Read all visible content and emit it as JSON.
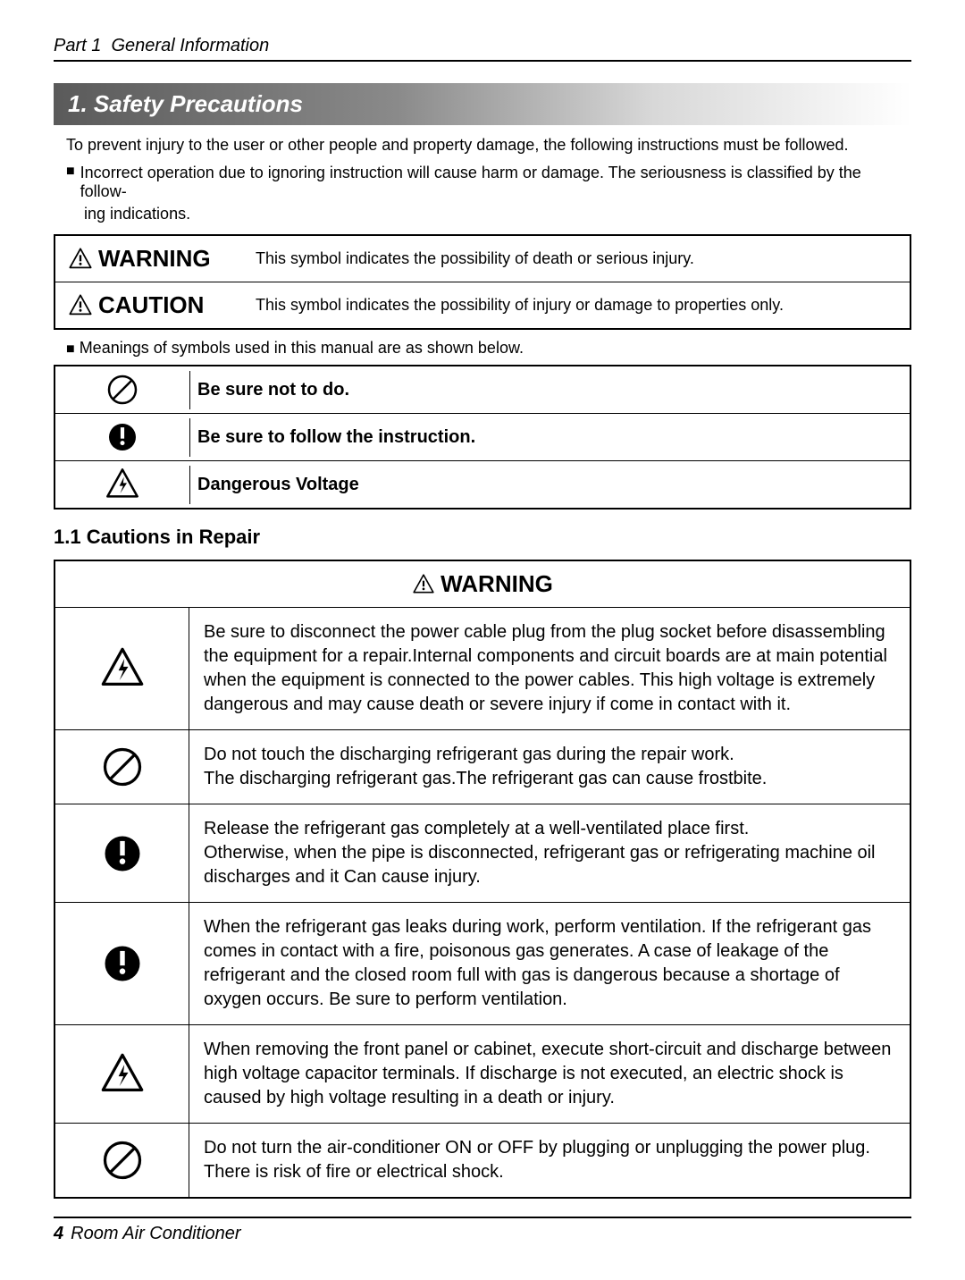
{
  "header": {
    "part": "Part 1",
    "title": "General Information"
  },
  "section": {
    "number": "1.",
    "title": "Safety Precautions"
  },
  "intro": "To prevent injury to the user or other people and property damage, the following instructions must be followed.",
  "bullet1_line1": "Incorrect operation due to ignoring instruction will cause harm or damage. The seriousness is classified by the follow-",
  "bullet1_line2": "ing indications.",
  "labels": {
    "warning": "WARNING",
    "caution": "CAUTION",
    "warning_desc": "This symbol indicates the possibility of death or serious injury.",
    "caution_desc": "This symbol indicates the possibility of injury or damage to properties only."
  },
  "meanings_intro": "Meanings of symbols used in this manual are as shown below.",
  "symbol_rows": {
    "prohibit": "Be sure not to do.",
    "follow": "Be sure to follow the instruction.",
    "voltage": "Dangerous Voltage"
  },
  "subsection": "1.1 Cautions in Repair",
  "warning_head": "WARNING",
  "warnings": {
    "r1": "Be sure to disconnect the power cable plug from the plug socket before disassembling the equipment for a repair.Internal components and circuit boards are at main potential when the equipment is connected to the power cables. This high voltage is extremely dangerous and may cause death or severe injury if come in contact with it.",
    "r2": "Do not touch  the discharging refrigerant gas during the repair work.\nThe discharging refrigerant gas.The refrigerant gas can cause frostbite.",
    "r3": "Release the refrigerant gas completely at a well-ventilated place first.\nOtherwise, when the pipe is disconnected, refrigerant gas or refrigerating machine oil discharges and it Can cause injury.",
    "r4": "When the refrigerant gas leaks during work, perform ventilation. If the refrigerant gas comes in contact with a fire, poisonous gas generates. A case of leakage of the refrigerant and the closed room full with gas is dangerous because a shortage of oxygen occurs. Be sure to perform ventilation.",
    "r5": "When removing the front panel or cabinet, execute short-circuit and discharge between high voltage capacitor terminals. If discharge is not executed, an electric shock is caused by high voltage resulting in a death or injury.",
    "r6": "Do not turn the air-conditioner ON or OFF by plugging or unplugging the power plug. There is risk of fire or electrical shock."
  },
  "footer": {
    "page": "4",
    "title": "Room Air Conditioner"
  },
  "colors": {
    "banner_start": "#5a5a5a",
    "banner_end": "#ffffff",
    "text": "#000000"
  }
}
